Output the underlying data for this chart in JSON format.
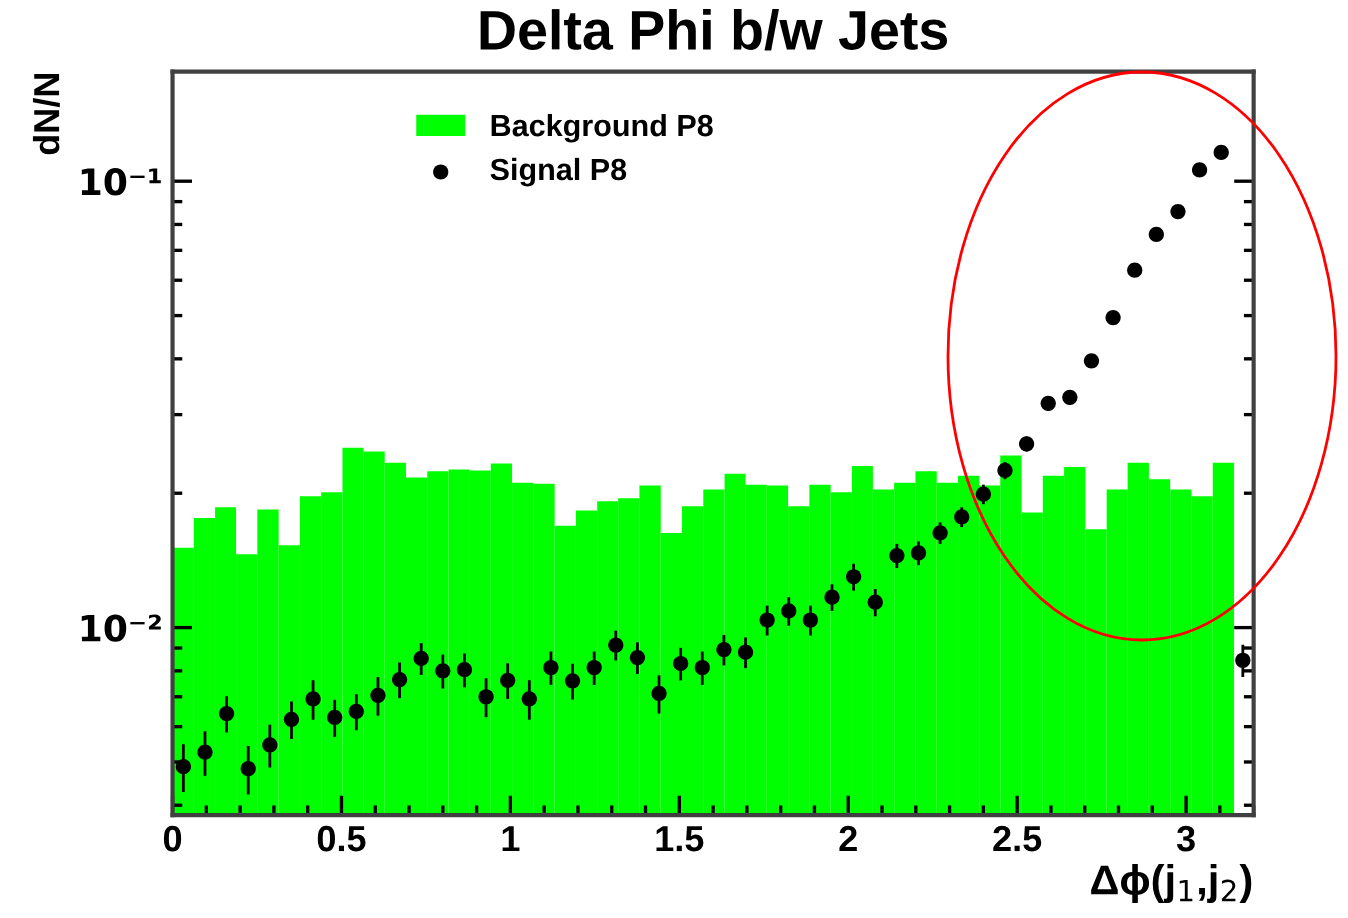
{
  "chart_data": {
    "type": "histogram",
    "title": "Delta Phi b/w Jets",
    "xlabel": "Δϕ(j$_{1}$,j$_{2}$)",
    "ylabel": "dN/N",
    "log": "y",
    "legend": "top left",
    "grid": false,
    "xlim": [
      0,
      3.2
    ],
    "xticks": [
      0,
      0.5,
      1,
      1.5,
      2,
      2.5,
      3
    ],
    "ylim": [
      0.0038,
      0.176
    ],
    "yticks": [
      {
        "value": 0.01,
        "label": "10⁻²"
      },
      {
        "value": 0.1,
        "label": "10⁻¹"
      }
    ],
    "series": [
      {
        "name": "Background P8",
        "color": "#00ff00",
        "bins": [
          0,
          0.063,
          0.126,
          0.188,
          0.251,
          0.314,
          0.377,
          0.44,
          0.503,
          0.565,
          0.628,
          0.691,
          0.754,
          0.817,
          0.88,
          0.942,
          1.005,
          1.068,
          1.131,
          1.194,
          1.257,
          1.319,
          1.382,
          1.445,
          1.508,
          1.571,
          1.634,
          1.696,
          1.759,
          1.822,
          1.885,
          1.948,
          2.011,
          2.073,
          2.136,
          2.199,
          2.262,
          2.325,
          2.388,
          2.45,
          2.513,
          2.576,
          2.639,
          2.702,
          2.765,
          2.827,
          2.89,
          2.953,
          3.016,
          3.079,
          3.142
        ],
        "values": [
          0.0151,
          0.0176,
          0.0186,
          0.0146,
          0.0184,
          0.0153,
          0.0197,
          0.0201,
          0.0253,
          0.0248,
          0.0234,
          0.0217,
          0.0224,
          0.0226,
          0.0225,
          0.0233,
          0.0211,
          0.021,
          0.0169,
          0.0183,
          0.0192,
          0.0195,
          0.0208,
          0.0163,
          0.0187,
          0.0204,
          0.0221,
          0.0209,
          0.0208,
          0.0187,
          0.0209,
          0.0201,
          0.023,
          0.0204,
          0.0211,
          0.0224,
          0.0211,
          0.0219,
          0.0208,
          0.0243,
          0.0181,
          0.0219,
          0.0229,
          0.0166,
          0.0204,
          0.0234,
          0.0215,
          0.0204,
          0.0197,
          0.0234
        ]
      },
      {
        "name": "Signal P8",
        "type": "scatter",
        "color": "#000000",
        "marker": "circle",
        "x": [
          0.032,
          0.096,
          0.16,
          0.224,
          0.288,
          0.352,
          0.416,
          0.48,
          0.544,
          0.608,
          0.672,
          0.736,
          0.8,
          0.864,
          0.928,
          0.992,
          1.056,
          1.12,
          1.184,
          1.248,
          1.312,
          1.376,
          1.44,
          1.504,
          1.568,
          1.632,
          1.696,
          1.76,
          1.824,
          1.888,
          1.952,
          2.016,
          2.08,
          2.144,
          2.208,
          2.272,
          2.336,
          2.4,
          2.464,
          2.528,
          2.592,
          2.656,
          2.72,
          2.784,
          2.848,
          2.912,
          2.976,
          3.04,
          3.104,
          3.168
        ],
        "values": [
          0.00488,
          0.00526,
          0.00642,
          0.00483,
          0.00546,
          0.00623,
          0.00692,
          0.00629,
          0.00649,
          0.00705,
          0.00765,
          0.00853,
          0.008,
          0.00805,
          0.007,
          0.00762,
          0.00692,
          0.00814,
          0.0076,
          0.00814,
          0.00914,
          0.00857,
          0.00712,
          0.00831,
          0.00814,
          0.00893,
          0.00881,
          0.0104,
          0.0109,
          0.0104,
          0.0117,
          0.013,
          0.0114,
          0.0145,
          0.0147,
          0.0163,
          0.0177,
          0.0199,
          0.0225,
          0.0258,
          0.0318,
          0.0328,
          0.0396,
          0.0495,
          0.0632,
          0.076,
          0.0855,
          0.106,
          0.116,
          0.00845
        ],
        "errors": [
          0.0006,
          0.0006,
          0.0006,
          0.0006,
          0.0006,
          0.0006,
          0.0007,
          0.0006,
          0.0006,
          0.0007,
          0.0007,
          0.0007,
          0.0007,
          0.0007,
          0.0007,
          0.0007,
          0.0007,
          0.0007,
          0.0007,
          0.0007,
          0.0007,
          0.0007,
          0.0007,
          0.0007,
          0.0007,
          0.0007,
          0.0007,
          0.0008,
          0.0008,
          0.0008,
          0.0008,
          0.0009,
          0.0008,
          0.0009,
          0.0009,
          0.0009,
          0.0009,
          0.001,
          0.001,
          0.001,
          0.0012,
          0.0012,
          0.0013,
          0.0015,
          0.0017,
          0.0018,
          0.002,
          0.0022,
          0.0023,
          0.0007
        ]
      }
    ]
  }
}
